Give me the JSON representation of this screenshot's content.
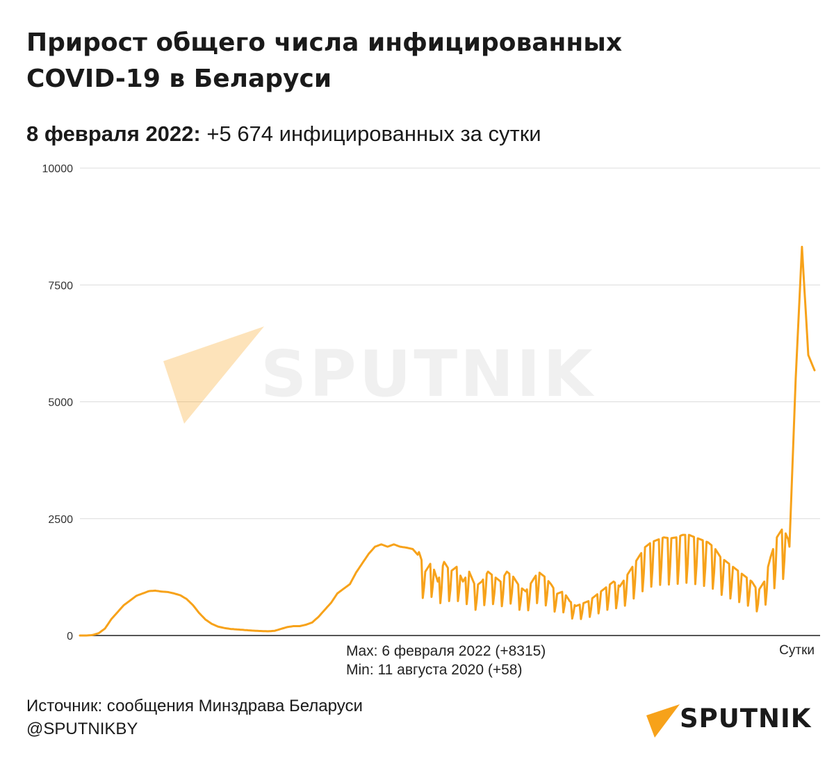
{
  "title": "Прирост общего числа инфицированных COVID-19 в Беларуси",
  "subtitle": {
    "date": "8 февраля 2022:",
    "text": "+5 674 инфицированных за сутки"
  },
  "source": "Источник: сообщения Минздрава Беларуси",
  "handle": "@SPUTNIKBY",
  "logo_text": "SPUTNIK",
  "watermark_text": "SPUTNIK",
  "colors": {
    "line": "#F7A21A",
    "grid": "#dcdcdc",
    "axis": "#555555",
    "logo_orange": "#F7A21A"
  },
  "chart_data": {
    "type": "line",
    "title": "Прирост общего числа инфицированных COVID-19 в Беларуси",
    "xlabel": "Сутки",
    "ylabel": "",
    "ylim": [
      0,
      10000
    ],
    "yticks": [
      0,
      2500,
      5000,
      7500,
      10000
    ],
    "grid": true,
    "annotations": [
      "Max: 6 февраля 2022 (+8315)",
      "Min: 11 августа 2020 (+58)"
    ],
    "x_range": [
      "2020-03",
      "2022-02-08"
    ],
    "series": [
      {
        "name": "",
        "values": [
          0,
          0,
          10,
          50,
          150,
          350,
          500,
          650,
          750,
          850,
          900,
          950,
          960,
          940,
          930,
          900,
          860,
          780,
          650,
          480,
          340,
          250,
          190,
          160,
          140,
          130,
          120,
          110,
          100,
          95,
          90,
          100,
          140,
          180,
          200,
          200,
          230,
          280,
          400,
          550,
          700,
          900,
          1000,
          1100,
          1350,
          1550,
          1750,
          1900,
          1950,
          1900,
          1950,
          1900,
          1880,
          1850,
          1700,
          1300,
          1500,
          1100,
          1500,
          1300,
          1400,
          1100,
          1300,
          1000,
          1100,
          1300,
          1200,
          1100,
          1300,
          1200,
          1000,
          900,
          1100,
          1300,
          1200,
          1050,
          850,
          900,
          700,
          600,
          650,
          700,
          800,
          900,
          1000,
          1100,
          1000,
          1200,
          1400,
          1600,
          1800,
          1900,
          1950,
          2000,
          1980,
          2000,
          2050,
          2050,
          2000,
          1950,
          1900,
          1800,
          1600,
          1500,
          1400,
          1300,
          1200,
          1100,
          900,
          1100,
          1600,
          2000,
          2200,
          1900,
          5500,
          8315,
          6000,
          5674
        ]
      }
    ]
  }
}
